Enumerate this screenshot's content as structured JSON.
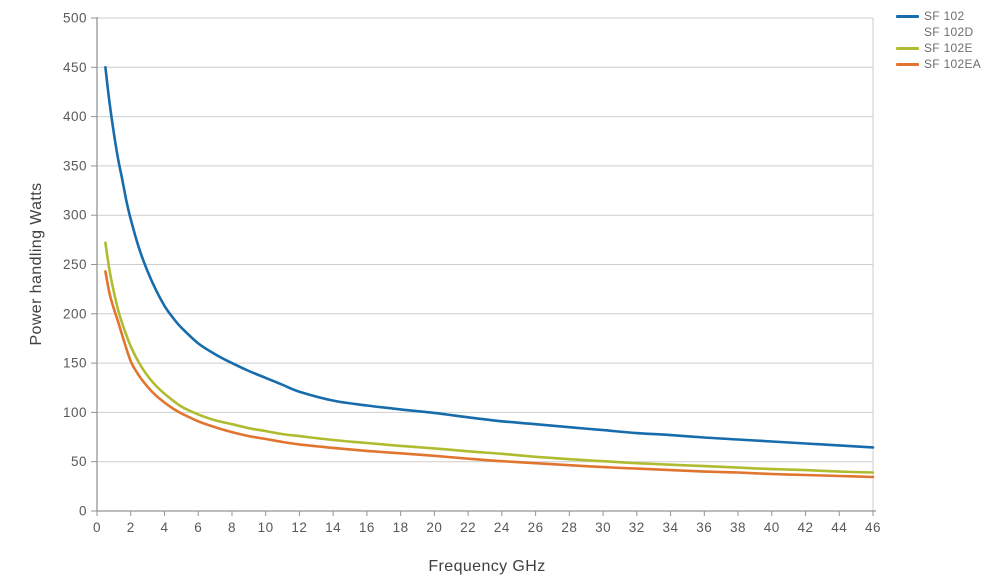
{
  "chart_data": {
    "type": "line",
    "title": "",
    "xlabel": "Frequency GHz",
    "ylabel": "Power handling Watts",
    "xlim": [
      0,
      46
    ],
    "ylim": [
      0,
      500
    ],
    "x_ticks": [
      0,
      2,
      4,
      6,
      8,
      10,
      12,
      14,
      16,
      18,
      20,
      22,
      24,
      26,
      28,
      30,
      32,
      34,
      36,
      38,
      40,
      42,
      44,
      46
    ],
    "y_ticks": [
      0,
      50,
      100,
      150,
      200,
      250,
      300,
      350,
      400,
      450,
      500
    ],
    "grid": "horizontal-only",
    "legend_position": "top-right-outside",
    "series": [
      {
        "name": "SF 102",
        "color": "#176cac",
        "points": [
          [
            0.5,
            450
          ],
          [
            0.75,
            413
          ],
          [
            1,
            383
          ],
          [
            1.25,
            357
          ],
          [
            1.5,
            336
          ],
          [
            1.75,
            314
          ],
          [
            2,
            296
          ],
          [
            2.5,
            266
          ],
          [
            3,
            243
          ],
          [
            3.5,
            224
          ],
          [
            4,
            208
          ],
          [
            4.5,
            196
          ],
          [
            5,
            186
          ],
          [
            6,
            170
          ],
          [
            7,
            159
          ],
          [
            8,
            150
          ],
          [
            9,
            142
          ],
          [
            10,
            135
          ],
          [
            11,
            128
          ],
          [
            12,
            121
          ],
          [
            14,
            112
          ],
          [
            16,
            107
          ],
          [
            18,
            103
          ],
          [
            20,
            99.5
          ],
          [
            22,
            95
          ],
          [
            24,
            91
          ],
          [
            26,
            88
          ],
          [
            28,
            85
          ],
          [
            30,
            82
          ],
          [
            32,
            79
          ],
          [
            34,
            77
          ],
          [
            36,
            74.5
          ],
          [
            38,
            72.5
          ],
          [
            40,
            70.5
          ],
          [
            42,
            68.5
          ],
          [
            44,
            66.5
          ],
          [
            46,
            64.5
          ]
        ]
      },
      {
        "name": "SF 102D",
        "color": "#ffffff",
        "points": []
      },
      {
        "name": "SF 102E",
        "color": "#b0bc30",
        "points": [
          [
            0.5,
            272
          ],
          [
            0.75,
            243
          ],
          [
            1,
            222
          ],
          [
            1.25,
            204
          ],
          [
            1.5,
            190
          ],
          [
            2,
            167
          ],
          [
            2.5,
            150
          ],
          [
            3,
            137
          ],
          [
            3.5,
            127
          ],
          [
            4,
            119
          ],
          [
            5,
            106
          ],
          [
            6,
            98
          ],
          [
            7,
            92
          ],
          [
            8,
            88
          ],
          [
            9,
            84
          ],
          [
            10,
            81
          ],
          [
            11,
            78
          ],
          [
            12,
            76
          ],
          [
            14,
            72
          ],
          [
            16,
            69
          ],
          [
            18,
            66
          ],
          [
            20,
            63.5
          ],
          [
            22,
            60.5
          ],
          [
            24,
            58
          ],
          [
            26,
            55
          ],
          [
            28,
            52.5
          ],
          [
            30,
            50.5
          ],
          [
            32,
            48.5
          ],
          [
            34,
            47
          ],
          [
            36,
            45.5
          ],
          [
            38,
            44
          ],
          [
            40,
            42.5
          ],
          [
            42,
            41.5
          ],
          [
            44,
            40
          ],
          [
            46,
            39
          ]
        ]
      },
      {
        "name": "SF 102EA",
        "color": "#e1752f",
        "points": [
          [
            0.5,
            243
          ],
          [
            0.75,
            220
          ],
          [
            1,
            205
          ],
          [
            1.25,
            192
          ],
          [
            1.5,
            178
          ],
          [
            2,
            152
          ],
          [
            2.5,
            137
          ],
          [
            3,
            126
          ],
          [
            3.5,
            117
          ],
          [
            4,
            110
          ],
          [
            4.5,
            104
          ],
          [
            5,
            99
          ],
          [
            6,
            91
          ],
          [
            7,
            85
          ],
          [
            8,
            80
          ],
          [
            9,
            76
          ],
          [
            10,
            73
          ],
          [
            11,
            70
          ],
          [
            12,
            67.5
          ],
          [
            14,
            64
          ],
          [
            16,
            61
          ],
          [
            18,
            58.5
          ],
          [
            20,
            56
          ],
          [
            22,
            53
          ],
          [
            24,
            50.5
          ],
          [
            26,
            48.5
          ],
          [
            28,
            46.5
          ],
          [
            30,
            44.5
          ],
          [
            32,
            43
          ],
          [
            34,
            41.5
          ],
          [
            36,
            40
          ],
          [
            38,
            39
          ],
          [
            40,
            37.5
          ],
          [
            42,
            36.5
          ],
          [
            44,
            35.5
          ],
          [
            46,
            34.5
          ]
        ]
      }
    ]
  },
  "colors": {
    "grid": "#cdced0",
    "axis": "#939598",
    "tick_text": "#58595b",
    "axis_title_text": "#414042",
    "legend_text": "#6d6e70",
    "background": "#ffffff"
  }
}
